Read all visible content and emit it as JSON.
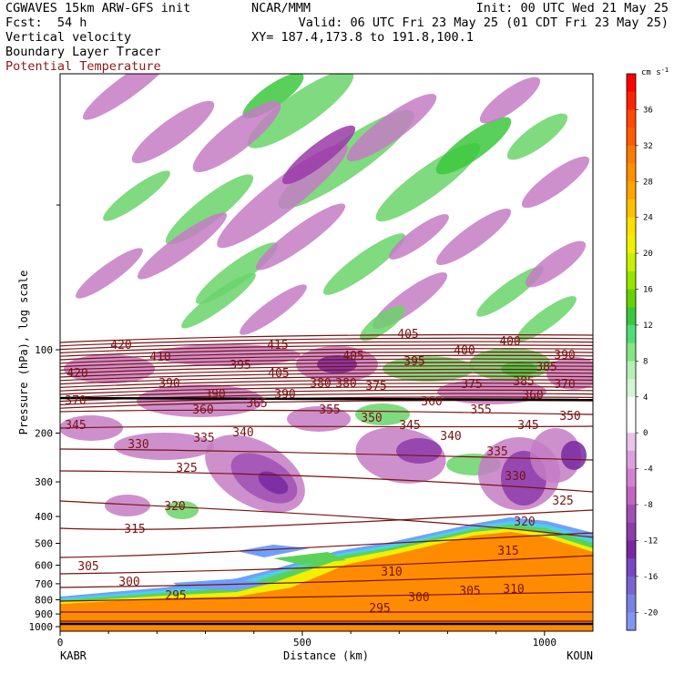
{
  "header": {
    "model": "CGWAVES 15km ARW-GFS init",
    "org": "NCAR/MMM",
    "init": "Init: 00 UTC Wed 21 May 25",
    "fcst_label": "Fcst:",
    "fcst_value": "54 h",
    "valid": "Valid: 06 UTC Fri 23 May 25 (01 CDT Fri 23 May 25)",
    "field1": "Vertical velocity",
    "field2": "Boundary Layer Tracer",
    "field3": "Potential Temperature",
    "xy": "XY= 187.4,173.8 to 191.8,100.1"
  },
  "colors": {
    "theta_contour": "#7a1212",
    "field3_text": "#8b1a1a",
    "upward": "#6ad36a",
    "downward": "#c47cc4",
    "tracer_core": "#ff8c00"
  },
  "chart_data": {
    "type": "heatmap",
    "xlabel": "Distance (km)",
    "ylabel": "Pressure (hPa), log scale",
    "x_ticks": [
      "0",
      "500",
      "1000"
    ],
    "x_lim": [
      0,
      1100
    ],
    "y_ticks": [
      "100",
      "200",
      "300",
      "400",
      "500",
      "600",
      "700",
      "800",
      "900",
      "1000"
    ],
    "y_lim": [
      1000,
      10
    ],
    "y_scale": "log",
    "endpoint_left": "KABR",
    "endpoint_right": "KOUN",
    "colorbar": {
      "units": "cm s",
      "units_exp": "-1",
      "labels": [
        "36",
        "32",
        "28",
        "24",
        "20",
        "16",
        "12",
        "8",
        "4",
        "0",
        "-4",
        "-8",
        "-12",
        "-16",
        "-20"
      ],
      "colors": [
        "#ff0000",
        "#ff2400",
        "#ff4800",
        "#ff5a00",
        "#ff7a00",
        "#ff9000",
        "#ffa400",
        "#ffc000",
        "#ffe000",
        "#f0f000",
        "#c8f000",
        "#96e600",
        "#64d200",
        "#3cc83c",
        "#50dc78",
        "#82e682",
        "#b4f0b4",
        "#d2f5d2",
        "#ffffff",
        "#ffffff",
        "#ebc3eb",
        "#dca0dc",
        "#d282d2",
        "#c364c3",
        "#a050b4",
        "#8c3caa",
        "#7828a0",
        "#7846c3",
        "#7864d2",
        "#7882e1",
        "#8296f0"
      ]
    },
    "theta_labels": [
      "420",
      "410",
      "415",
      "405",
      "420",
      "395",
      "400",
      "390",
      "400",
      "405",
      "390",
      "385",
      "380",
      "405",
      "395",
      "385",
      "375",
      "375",
      "380",
      "370",
      "370",
      "360",
      "365",
      "355",
      "360",
      "355",
      "360",
      "345",
      "350",
      "345",
      "345",
      "350",
      "340",
      "340",
      "330",
      "335",
      "335",
      "325",
      "330",
      "320",
      "325",
      "315",
      "320",
      "305",
      "315",
      "300",
      "310",
      "305",
      "310",
      "295",
      "300",
      "295",
      "390",
      "390"
    ]
  }
}
